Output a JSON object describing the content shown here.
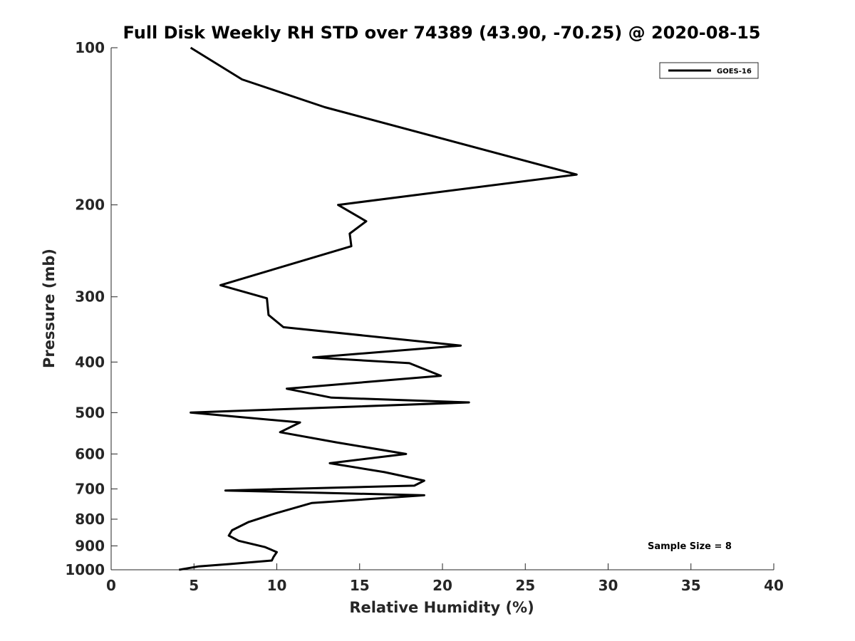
{
  "chart_data": {
    "type": "line",
    "title": "Full Disk Weekly RH STD over 74389 (43.90, -70.25) @ 2020-08-15",
    "xlabel": "Relative Humidity (%)",
    "ylabel": "Pressure (mb)",
    "xlim": [
      0,
      40
    ],
    "ylim": [
      100,
      1000
    ],
    "yscale": "log",
    "yreversed": true,
    "grid": false,
    "xticks": [
      0,
      5,
      10,
      15,
      20,
      25,
      30,
      35,
      40
    ],
    "yticks": [
      100,
      200,
      300,
      400,
      500,
      600,
      700,
      800,
      900,
      1000
    ],
    "legend": {
      "position": "top-right",
      "entries": [
        "GOES-16"
      ]
    },
    "annotation": "Sample Size = 8",
    "series": [
      {
        "name": "GOES-16",
        "color": "#000000",
        "x": [
          4.8,
          7.9,
          12.9,
          28.1,
          13.7,
          15.4,
          14.4,
          14.5,
          6.6,
          9.4,
          9.5,
          10.4,
          21.1,
          12.2,
          18.0,
          19.9,
          10.6,
          13.3,
          21.6,
          4.8,
          11.4,
          10.2,
          13.6,
          17.8,
          13.2,
          16.5,
          18.9,
          18.3,
          6.9,
          18.9,
          12.1,
          9.9,
          8.3,
          7.3,
          7.1,
          7.7,
          9.3,
          10.0,
          9.8,
          9.7,
          7.2,
          5.3,
          4.1
        ],
        "y": [
          100,
          115,
          130,
          175,
          200,
          215,
          227,
          240,
          285,
          302,
          325,
          343,
          372,
          392,
          402,
          425,
          450,
          468,
          478,
          500,
          522,
          545,
          570,
          600,
          625,
          650,
          675,
          690,
          705,
          720,
          745,
          780,
          810,
          840,
          860,
          880,
          905,
          925,
          945,
          960,
          975,
          985,
          1000
        ]
      }
    ]
  }
}
